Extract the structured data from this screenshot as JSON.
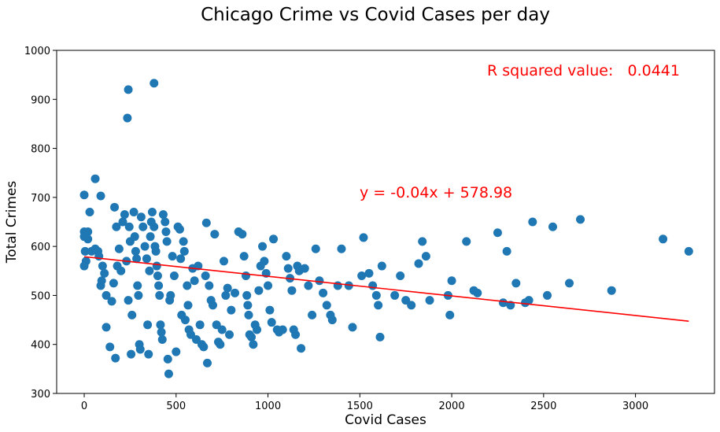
{
  "chart_data": {
    "type": "scatter",
    "title": "Chicago Crime vs Covid Cases per day",
    "xlabel": "Covid Cases",
    "ylabel": "Total Crimes",
    "xlim": [
      -150,
      3430
    ],
    "ylim": [
      300,
      1000
    ],
    "xticks": [
      0,
      500,
      1000,
      1500,
      2000,
      2500,
      3000
    ],
    "yticks": [
      300,
      400,
      500,
      600,
      700,
      800,
      900,
      1000
    ],
    "grid": false,
    "point_color": "#1f77b4",
    "line_color": "#ff0000",
    "annotation_color": "#ff0000",
    "regression": {
      "slope": -0.04,
      "intercept": 578.98,
      "x_range": [
        0,
        3290
      ],
      "equation_label": "y = -0.04x + 578.98"
    },
    "r_squared_label": "R squared value:   0.0441",
    "points": [
      [
        240,
        920
      ],
      [
        380,
        933
      ],
      [
        235,
        862
      ],
      [
        0,
        705
      ],
      [
        60,
        738
      ],
      [
        90,
        703
      ],
      [
        0,
        630
      ],
      [
        0,
        620
      ],
      [
        5,
        590
      ],
      [
        10,
        570
      ],
      [
        0,
        560
      ],
      [
        30,
        670
      ],
      [
        20,
        630
      ],
      [
        20,
        615
      ],
      [
        40,
        590
      ],
      [
        60,
        595
      ],
      [
        75,
        590
      ],
      [
        80,
        580
      ],
      [
        90,
        520
      ],
      [
        95,
        530
      ],
      [
        100,
        560
      ],
      [
        110,
        545
      ],
      [
        120,
        500
      ],
      [
        120,
        435
      ],
      [
        140,
        395
      ],
      [
        150,
        488
      ],
      [
        160,
        525
      ],
      [
        170,
        372
      ],
      [
        165,
        680
      ],
      [
        175,
        640
      ],
      [
        180,
        560
      ],
      [
        190,
        595
      ],
      [
        200,
        550
      ],
      [
        210,
        650
      ],
      [
        220,
        665
      ],
      [
        230,
        570
      ],
      [
        240,
        490
      ],
      [
        245,
        640
      ],
      [
        250,
        610
      ],
      [
        255,
        380
      ],
      [
        260,
        460
      ],
      [
        270,
        670
      ],
      [
        275,
        620
      ],
      [
        280,
        590
      ],
      [
        285,
        575
      ],
      [
        290,
        520
      ],
      [
        295,
        500
      ],
      [
        300,
        400
      ],
      [
        305,
        390
      ],
      [
        310,
        660
      ],
      [
        320,
        640
      ],
      [
        330,
        600
      ],
      [
        340,
        575
      ],
      [
        345,
        440
      ],
      [
        350,
        380
      ],
      [
        355,
        550
      ],
      [
        360,
        620
      ],
      [
        365,
        650
      ],
      [
        370,
        670
      ],
      [
        380,
        640
      ],
      [
        385,
        600
      ],
      [
        390,
        590
      ],
      [
        395,
        560
      ],
      [
        400,
        540
      ],
      [
        405,
        520
      ],
      [
        410,
        500
      ],
      [
        415,
        440
      ],
      [
        420,
        425
      ],
      [
        425,
        410
      ],
      [
        430,
        665
      ],
      [
        440,
        650
      ],
      [
        445,
        630
      ],
      [
        450,
        610
      ],
      [
        455,
        370
      ],
      [
        460,
        340
      ],
      [
        465,
        490
      ],
      [
        470,
        500
      ],
      [
        480,
        580
      ],
      [
        490,
        540
      ],
      [
        500,
        385
      ],
      [
        510,
        640
      ],
      [
        520,
        635
      ],
      [
        525,
        575
      ],
      [
        530,
        460
      ],
      [
        540,
        610
      ],
      [
        545,
        590
      ],
      [
        550,
        450
      ],
      [
        560,
        520
      ],
      [
        565,
        480
      ],
      [
        570,
        430
      ],
      [
        580,
        420
      ],
      [
        590,
        555
      ],
      [
        600,
        530
      ],
      [
        610,
        410
      ],
      [
        620,
        560
      ],
      [
        630,
        440
      ],
      [
        640,
        400
      ],
      [
        650,
        395
      ],
      [
        660,
        540
      ],
      [
        665,
        648
      ],
      [
        670,
        362
      ],
      [
        680,
        520
      ],
      [
        690,
        490
      ],
      [
        700,
        480
      ],
      [
        710,
        625
      ],
      [
        720,
        440
      ],
      [
        730,
        405
      ],
      [
        740,
        400
      ],
      [
        750,
        430
      ],
      [
        760,
        570
      ],
      [
        770,
        500
      ],
      [
        780,
        515
      ],
      [
        790,
        420
      ],
      [
        800,
        470
      ],
      [
        820,
        505
      ],
      [
        840,
        630
      ],
      [
        860,
        625
      ],
      [
        870,
        580
      ],
      [
        880,
        540
      ],
      [
        885,
        500
      ],
      [
        890,
        480
      ],
      [
        895,
        460
      ],
      [
        900,
        420
      ],
      [
        910,
        415
      ],
      [
        920,
        400
      ],
      [
        930,
        440
      ],
      [
        940,
        430
      ],
      [
        950,
        510
      ],
      [
        960,
        560
      ],
      [
        970,
        600
      ],
      [
        980,
        570
      ],
      [
        990,
        545
      ],
      [
        1000,
        520
      ],
      [
        1010,
        470
      ],
      [
        1020,
        445
      ],
      [
        1030,
        615
      ],
      [
        1050,
        430
      ],
      [
        1060,
        425
      ],
      [
        1080,
        430
      ],
      [
        1100,
        580
      ],
      [
        1110,
        555
      ],
      [
        1120,
        535
      ],
      [
        1130,
        510
      ],
      [
        1140,
        430
      ],
      [
        1150,
        420
      ],
      [
        1160,
        560
      ],
      [
        1170,
        550
      ],
      [
        1180,
        392
      ],
      [
        1200,
        555
      ],
      [
        1220,
        520
      ],
      [
        1240,
        460
      ],
      [
        1260,
        595
      ],
      [
        1280,
        530
      ],
      [
        1300,
        505
      ],
      [
        1320,
        480
      ],
      [
        1340,
        460
      ],
      [
        1350,
        450
      ],
      [
        1380,
        520
      ],
      [
        1400,
        595
      ],
      [
        1440,
        520
      ],
      [
        1460,
        435
      ],
      [
        1510,
        540
      ],
      [
        1520,
        618
      ],
      [
        1550,
        545
      ],
      [
        1570,
        520
      ],
      [
        1590,
        500
      ],
      [
        1600,
        480
      ],
      [
        1610,
        415
      ],
      [
        1620,
        560
      ],
      [
        1690,
        500
      ],
      [
        1720,
        540
      ],
      [
        1750,
        490
      ],
      [
        1780,
        480
      ],
      [
        1820,
        565
      ],
      [
        1840,
        610
      ],
      [
        1860,
        580
      ],
      [
        1880,
        490
      ],
      [
        1980,
        500
      ],
      [
        1990,
        460
      ],
      [
        2000,
        530
      ],
      [
        2080,
        610
      ],
      [
        2120,
        510
      ],
      [
        2140,
        505
      ],
      [
        2250,
        628
      ],
      [
        2280,
        485
      ],
      [
        2300,
        590
      ],
      [
        2320,
        480
      ],
      [
        2350,
        525
      ],
      [
        2400,
        485
      ],
      [
        2420,
        490
      ],
      [
        2440,
        650
      ],
      [
        2520,
        500
      ],
      [
        2550,
        640
      ],
      [
        2640,
        525
      ],
      [
        2700,
        655
      ],
      [
        2870,
        510
      ],
      [
        3150,
        615
      ],
      [
        3290,
        590
      ]
    ]
  }
}
